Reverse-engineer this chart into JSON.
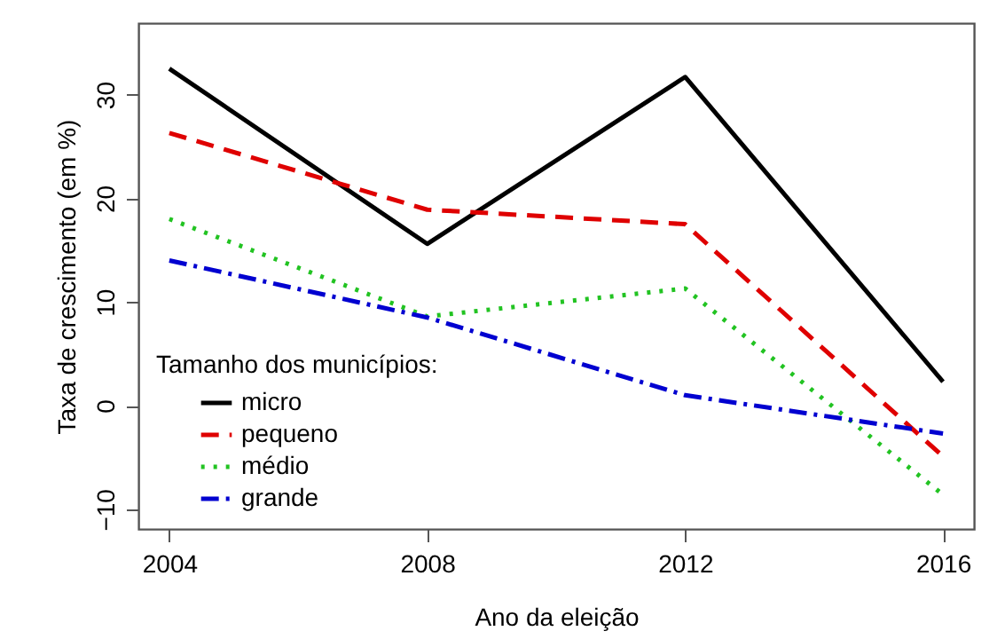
{
  "chart_data": {
    "type": "line",
    "xlabel": "Ano da eleição",
    "ylabel": "Taxa de crescimento (em %)",
    "legend_title": "Tamanho dos municípios:",
    "x": [
      2004,
      2008,
      2012,
      2016
    ],
    "xlim": [
      2003.52,
      2016.48
    ],
    "xticks": [
      2004,
      2008,
      2012,
      2016
    ],
    "ylim": [
      -11.9,
      36.9
    ],
    "yticks": [
      -10,
      0,
      10,
      20,
      30
    ],
    "grid": false,
    "legend": "bottom left",
    "marker": "none",
    "series": [
      {
        "name": "micro",
        "color": "#000000",
        "line_style": "solid",
        "values": [
          32.5,
          15.6,
          31.7,
          2.3
        ]
      },
      {
        "name": "pequeno",
        "color": "#df0000",
        "line_style": "dashed",
        "values": [
          26.3,
          18.9,
          17.5,
          -4.9
        ]
      },
      {
        "name": "médio",
        "color": "#22c322",
        "line_style": "dotted",
        "values": [
          18.0,
          8.6,
          11.3,
          -8.6
        ]
      },
      {
        "name": "grande",
        "color": "#0000d0",
        "line_style": "dashdot",
        "values": [
          14.0,
          8.5,
          1.0,
          -2.7
        ]
      }
    ]
  }
}
